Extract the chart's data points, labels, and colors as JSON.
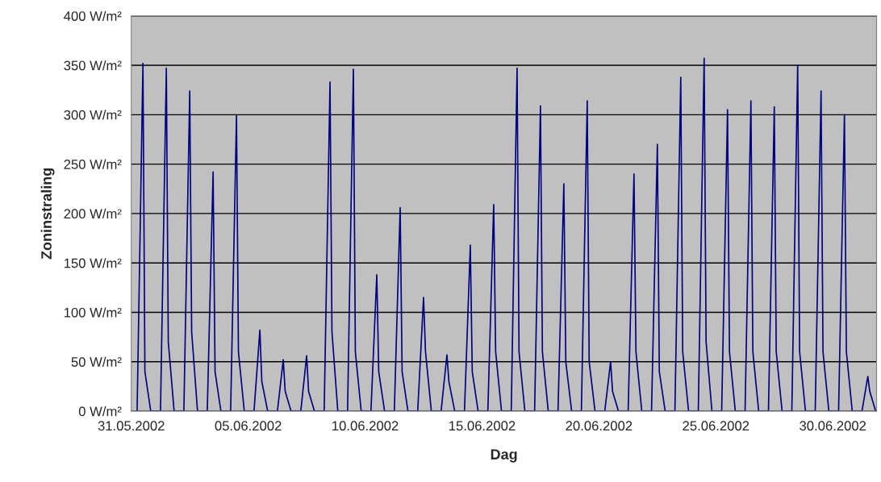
{
  "chart_data": {
    "type": "line",
    "xlabel": "Dag",
    "ylabel": "Zoninstraling",
    "x": [
      "2002-05-31T06:00",
      "2002-05-31T12:00",
      "2002-05-31T14:00",
      "2002-05-31T20:00",
      "2002-06-01T06:00",
      "2002-06-01T12:00",
      "2002-06-01T14:00",
      "2002-06-01T20:00",
      "2002-06-02T06:00",
      "2002-06-02T12:00",
      "2002-06-02T14:00",
      "2002-06-02T20:00",
      "2002-06-03T06:00",
      "2002-06-03T12:00",
      "2002-06-03T14:00",
      "2002-06-03T20:00",
      "2002-06-04T06:00",
      "2002-06-04T12:00",
      "2002-06-04T14:00",
      "2002-06-04T20:00",
      "2002-06-05T06:00",
      "2002-06-05T12:00",
      "2002-06-05T14:00",
      "2002-06-05T20:00",
      "2002-06-06T06:00",
      "2002-06-06T12:00",
      "2002-06-06T14:00",
      "2002-06-06T20:00",
      "2002-06-07T06:00",
      "2002-06-07T12:00",
      "2002-06-07T14:00",
      "2002-06-07T20:00",
      "2002-06-08T06:00",
      "2002-06-08T12:00",
      "2002-06-08T14:00",
      "2002-06-08T20:00",
      "2002-06-09T06:00",
      "2002-06-09T12:00",
      "2002-06-09T14:00",
      "2002-06-09T20:00",
      "2002-06-10T06:00",
      "2002-06-10T12:00",
      "2002-06-10T14:00",
      "2002-06-10T20:00",
      "2002-06-11T06:00",
      "2002-06-11T12:00",
      "2002-06-11T14:00",
      "2002-06-11T20:00",
      "2002-06-12T06:00",
      "2002-06-12T12:00",
      "2002-06-12T14:00",
      "2002-06-12T20:00",
      "2002-06-13T06:00",
      "2002-06-13T12:00",
      "2002-06-13T14:00",
      "2002-06-13T20:00",
      "2002-06-14T06:00",
      "2002-06-14T12:00",
      "2002-06-14T14:00",
      "2002-06-14T20:00",
      "2002-06-15T06:00",
      "2002-06-15T12:00",
      "2002-06-15T14:00",
      "2002-06-15T20:00",
      "2002-06-16T06:00",
      "2002-06-16T12:00",
      "2002-06-16T14:00",
      "2002-06-16T20:00",
      "2002-06-17T06:00",
      "2002-06-17T12:00",
      "2002-06-17T14:00",
      "2002-06-17T20:00",
      "2002-06-18T06:00",
      "2002-06-18T12:00",
      "2002-06-18T14:00",
      "2002-06-18T20:00",
      "2002-06-19T06:00",
      "2002-06-19T12:00",
      "2002-06-19T14:00",
      "2002-06-19T20:00",
      "2002-06-20T06:00",
      "2002-06-20T12:00",
      "2002-06-20T14:00",
      "2002-06-20T20:00",
      "2002-06-21T06:00",
      "2002-06-21T12:00",
      "2002-06-21T14:00",
      "2002-06-21T20:00",
      "2002-06-22T06:00",
      "2002-06-22T12:00",
      "2002-06-22T14:00",
      "2002-06-22T20:00",
      "2002-06-23T06:00",
      "2002-06-23T12:00",
      "2002-06-23T14:00",
      "2002-06-23T20:00",
      "2002-06-24T06:00",
      "2002-06-24T12:00",
      "2002-06-24T14:00",
      "2002-06-24T20:00",
      "2002-06-25T06:00",
      "2002-06-25T12:00",
      "2002-06-25T14:00",
      "2002-06-25T20:00",
      "2002-06-26T06:00",
      "2002-06-26T12:00",
      "2002-06-26T14:00",
      "2002-06-26T20:00",
      "2002-06-27T06:00",
      "2002-06-27T12:00",
      "2002-06-27T14:00",
      "2002-06-27T20:00",
      "2002-06-28T06:00",
      "2002-06-28T12:00",
      "2002-06-28T14:00",
      "2002-06-28T20:00",
      "2002-06-29T06:00",
      "2002-06-29T12:00",
      "2002-06-29T14:00",
      "2002-06-29T20:00",
      "2002-06-30T06:00",
      "2002-06-30T12:00",
      "2002-06-30T14:00",
      "2002-06-30T20:00",
      "2002-07-01T06:00",
      "2002-07-01T12:00",
      "2002-07-01T14:00",
      "2002-07-01T20:00"
    ],
    "series": [
      {
        "color": "#000080",
        "values": [
          0,
          352,
          40,
          0,
          0,
          347,
          70,
          0,
          0,
          324,
          80,
          0,
          0,
          242,
          40,
          0,
          0,
          299,
          60,
          0,
          0,
          82,
          30,
          0,
          0,
          52,
          20,
          0,
          0,
          56,
          20,
          0,
          0,
          333,
          80,
          0,
          0,
          346,
          60,
          0,
          0,
          138,
          40,
          0,
          0,
          206,
          40,
          0,
          0,
          115,
          60,
          0,
          0,
          57,
          30,
          0,
          0,
          168,
          40,
          0,
          0,
          209,
          60,
          0,
          0,
          347,
          60,
          0,
          0,
          309,
          60,
          0,
          0,
          230,
          50,
          0,
          0,
          314,
          50,
          0,
          0,
          50,
          20,
          0,
          0,
          240,
          60,
          0,
          0,
          270,
          40,
          0,
          0,
          338,
          60,
          0,
          0,
          357,
          70,
          0,
          0,
          305,
          60,
          0,
          0,
          314,
          60,
          0,
          0,
          308,
          60,
          0,
          0,
          350,
          60,
          0,
          0,
          324,
          60,
          0,
          0,
          300,
          60,
          0,
          0,
          35,
          20,
          0
        ]
      }
    ],
    "xlim": [
      "2002-05-31",
      "2002-07-01T21:00"
    ],
    "xticks": [
      {
        "value": "2002-05-31",
        "label": "31.05.2002"
      },
      {
        "value": "2002-06-05",
        "label": "05.06.2002"
      },
      {
        "value": "2002-06-10",
        "label": "10.06.2002"
      },
      {
        "value": "2002-06-15",
        "label": "15.06.2002"
      },
      {
        "value": "2002-06-20",
        "label": "20.06.2002"
      },
      {
        "value": "2002-06-25",
        "label": "25.06.2002"
      },
      {
        "value": "2002-06-30",
        "label": "30.06.2002"
      }
    ],
    "ylim": [
      0,
      400
    ],
    "yticks": [
      {
        "value": 0,
        "label": "0 W/m²"
      },
      {
        "value": 50,
        "label": "50 W/m²"
      },
      {
        "value": 100,
        "label": "100 W/m²"
      },
      {
        "value": 150,
        "label": "150 W/m²"
      },
      {
        "value": 200,
        "label": "200 W/m²"
      },
      {
        "value": 250,
        "label": "250 W/m²"
      },
      {
        "value": 300,
        "label": "300 W/m²"
      },
      {
        "value": 350,
        "label": "350 W/m²"
      },
      {
        "value": 400,
        "label": "400 W/m²"
      }
    ],
    "grid": "y",
    "marker": "none",
    "line_style": "solid"
  }
}
